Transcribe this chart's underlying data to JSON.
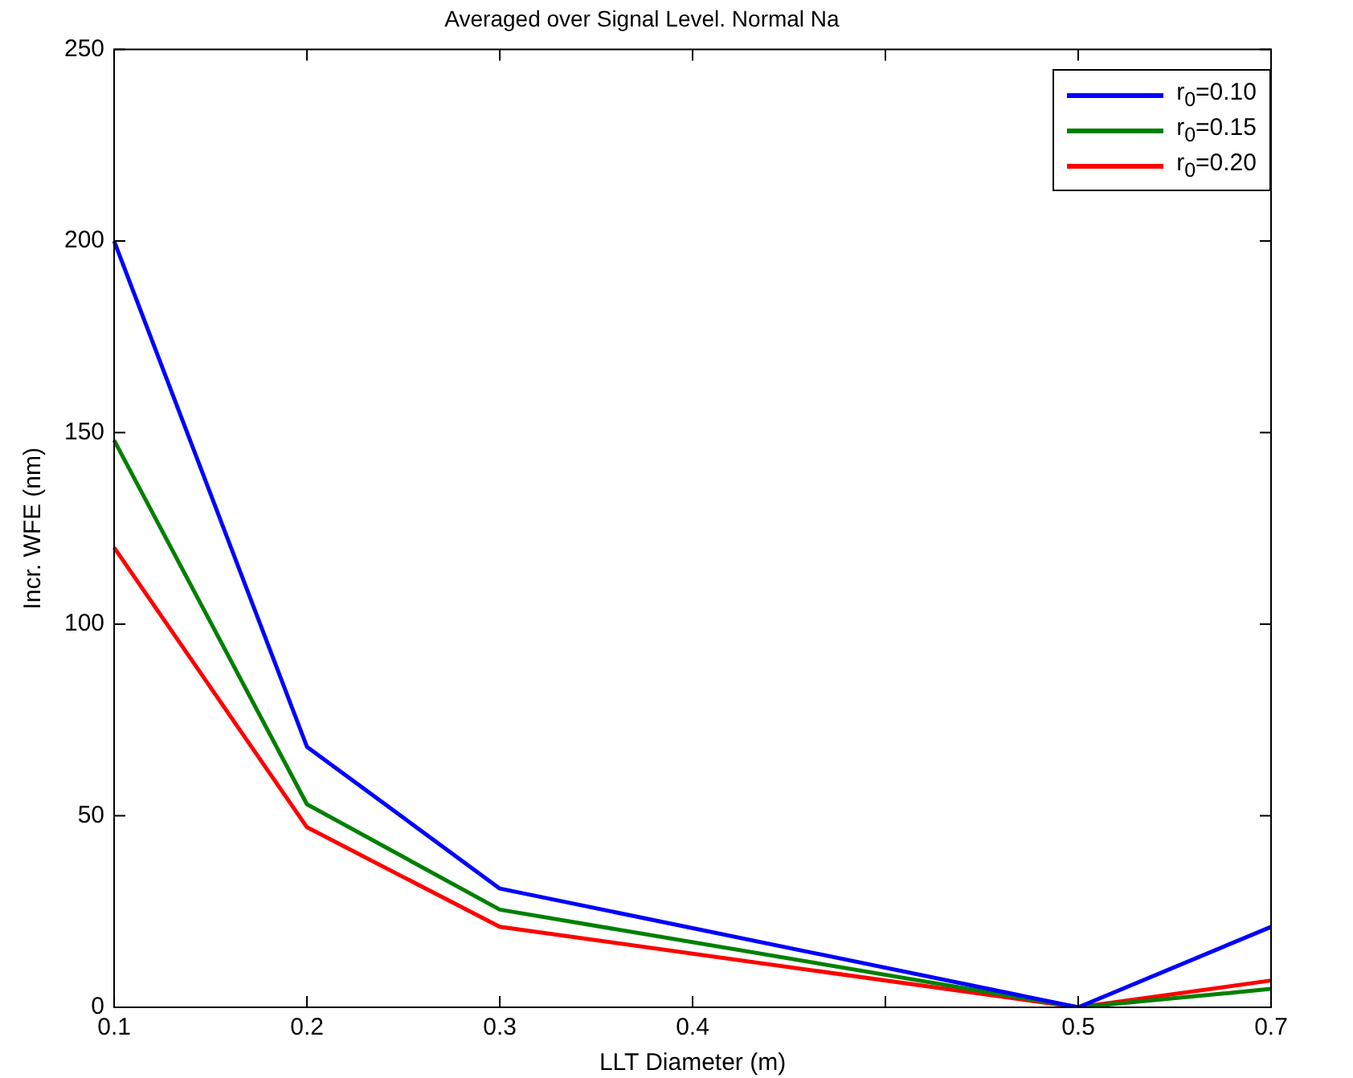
{
  "chart_data": {
    "type": "line",
    "title": "Averaged over Signal Level. Normal Na",
    "xlabel": "LLT Diameter (m)",
    "ylabel": "Incr. WFE (nm)",
    "categories": [
      "0.1",
      "0.2",
      "0.3",
      "0.4",
      null,
      "0.5",
      "0.7"
    ],
    "ylim": [
      0,
      250
    ],
    "yticks": [
      0,
      50,
      100,
      150,
      200,
      250
    ],
    "grid": false,
    "legend": "top right",
    "marker": "none",
    "line_style": "solid",
    "series": [
      {
        "name": "r$_{0}$=0.10",
        "color": "#0000ff",
        "values": [
          200,
          68,
          31,
          null,
          null,
          0,
          21
        ]
      },
      {
        "name": "r$_{0}$=0.15",
        "color": "#008000",
        "values": [
          148,
          53,
          25.5,
          null,
          null,
          0,
          4.8
        ]
      },
      {
        "name": "r$_{0}$=0.20",
        "color": "#ff0000",
        "values": [
          120,
          47,
          21,
          null,
          null,
          0,
          7
        ]
      }
    ]
  }
}
